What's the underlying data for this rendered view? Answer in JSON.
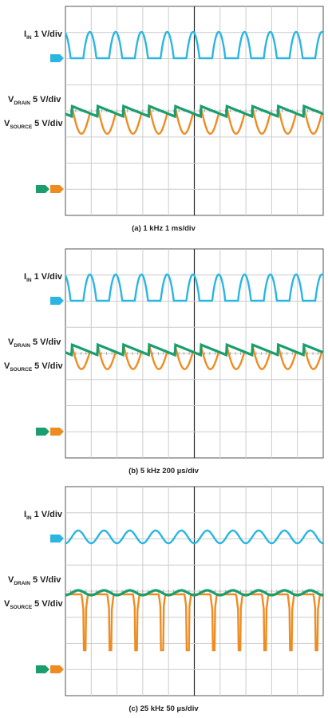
{
  "panels": [
    {
      "caption": "(a) 1 kHz  1 ms/div",
      "labels": [
        {
          "main": "I",
          "sub": "IN",
          "scale": "1 V/div"
        },
        {
          "main": "V",
          "sub": "DRAIN",
          "scale": "5 V/div"
        },
        {
          "main": "V",
          "sub": "SOURCE",
          "scale": "5 V/div"
        }
      ]
    },
    {
      "caption": "(b) 5 kHz  200 µs/div",
      "labels": [
        {
          "main": "I",
          "sub": "IN",
          "scale": "1 V/div"
        },
        {
          "main": "V",
          "sub": "DRAIN",
          "scale": "5 V/div"
        },
        {
          "main": "V",
          "sub": "SOURCE",
          "scale": "5 V/div"
        }
      ]
    },
    {
      "caption": "(c) 25 kHz  50 µs/div",
      "labels": [
        {
          "main": "I",
          "sub": "IN",
          "scale": "1 V/div"
        },
        {
          "main": "V",
          "sub": "DRAIN",
          "scale": "5 V/div"
        },
        {
          "main": "V",
          "sub": "SOURCE",
          "scale": "5 V/div"
        }
      ]
    }
  ]
}
